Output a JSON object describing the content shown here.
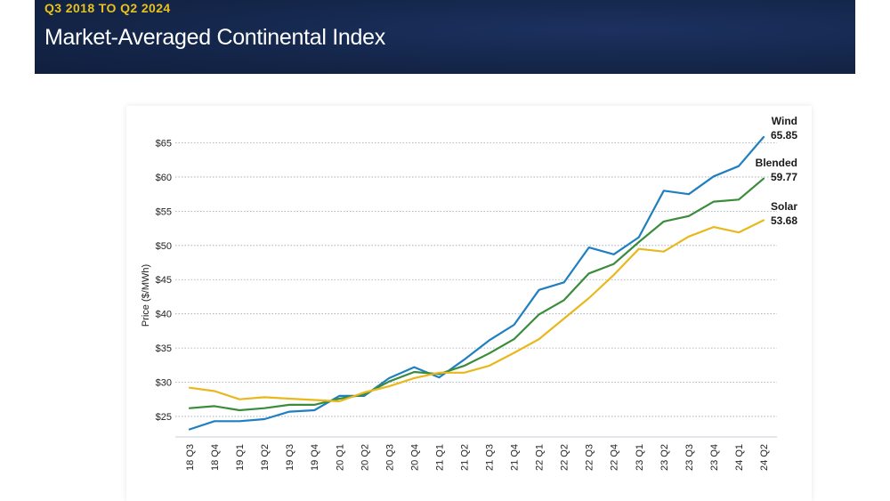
{
  "header": {
    "eyebrow": "Q3 2018 TO Q2 2024",
    "title": "Market-Averaged Continental Index"
  },
  "chart_data": {
    "type": "line",
    "title": "",
    "xlabel": "",
    "ylabel": "Price ($/MWh)",
    "ylim": [
      22,
      66.5
    ],
    "yticks": [
      25,
      30,
      35,
      40,
      45,
      50,
      55,
      60,
      65
    ],
    "ytick_labels": [
      "$25",
      "$30",
      "$35",
      "$40",
      "$45",
      "$50",
      "$55",
      "$60",
      "$65"
    ],
    "grid": "horizontal dotted",
    "legend": "end-of-line labels (right)",
    "categories": [
      "18 Q3",
      "18 Q4",
      "19 Q1",
      "19 Q2",
      "19 Q3",
      "19 Q4",
      "20 Q1",
      "20 Q2",
      "20 Q3",
      "20 Q4",
      "21 Q1",
      "21 Q2",
      "21 Q3",
      "21 Q4",
      "22 Q1",
      "22 Q2",
      "22 Q3",
      "22 Q4",
      "23 Q1",
      "23 Q2",
      "23 Q3",
      "23 Q4",
      "24 Q1",
      "24 Q2"
    ],
    "series": [
      {
        "name": "Wind",
        "end_label": "65.85",
        "color": "#1f7fc0",
        "values": [
          23.1,
          24.3,
          24.3,
          24.6,
          25.7,
          25.9,
          28.0,
          28.0,
          30.6,
          32.2,
          30.7,
          33.3,
          36.1,
          38.4,
          43.5,
          44.6,
          49.7,
          48.7,
          51.2,
          58.0,
          57.5,
          60.1,
          61.6,
          65.85
        ]
      },
      {
        "name": "Blended",
        "end_label": "59.77",
        "color": "#3a8c3a",
        "values": [
          26.2,
          26.5,
          25.9,
          26.2,
          26.7,
          26.7,
          27.6,
          28.2,
          30.1,
          31.5,
          31.2,
          32.4,
          34.2,
          36.3,
          39.9,
          42.0,
          45.9,
          47.3,
          50.5,
          53.5,
          54.3,
          56.4,
          56.7,
          59.77
        ]
      },
      {
        "name": "Solar",
        "end_label": "53.68",
        "color": "#e8b81c",
        "values": [
          29.2,
          28.7,
          27.5,
          27.8,
          27.6,
          27.4,
          27.2,
          28.5,
          29.4,
          30.6,
          31.4,
          31.4,
          32.4,
          34.3,
          36.3,
          39.3,
          42.3,
          45.7,
          49.5,
          49.1,
          51.3,
          52.7,
          51.9,
          53.68
        ]
      }
    ]
  }
}
